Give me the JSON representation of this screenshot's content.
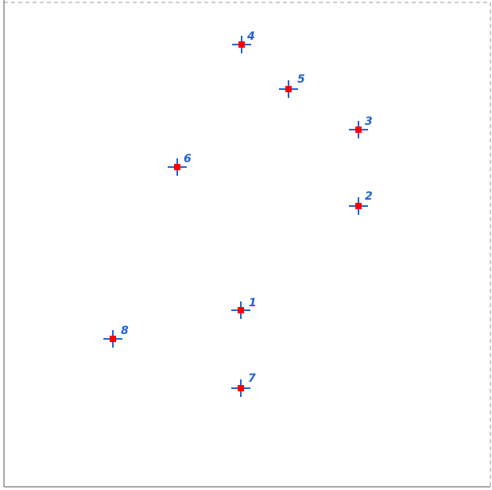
{
  "colors": {
    "marker_fill": "#ff0000",
    "crosshair": "#1f63d6",
    "label": "#1f63d6",
    "border": "#8f8f8f",
    "background": "#ffffff"
  },
  "points": [
    {
      "id": "1",
      "label": "1"
    },
    {
      "id": "2",
      "label": "2"
    },
    {
      "id": "3",
      "label": "3"
    },
    {
      "id": "4",
      "label": "4"
    },
    {
      "id": "5",
      "label": "5"
    },
    {
      "id": "6",
      "label": "6"
    },
    {
      "id": "7",
      "label": "7"
    },
    {
      "id": "8",
      "label": "8"
    }
  ]
}
